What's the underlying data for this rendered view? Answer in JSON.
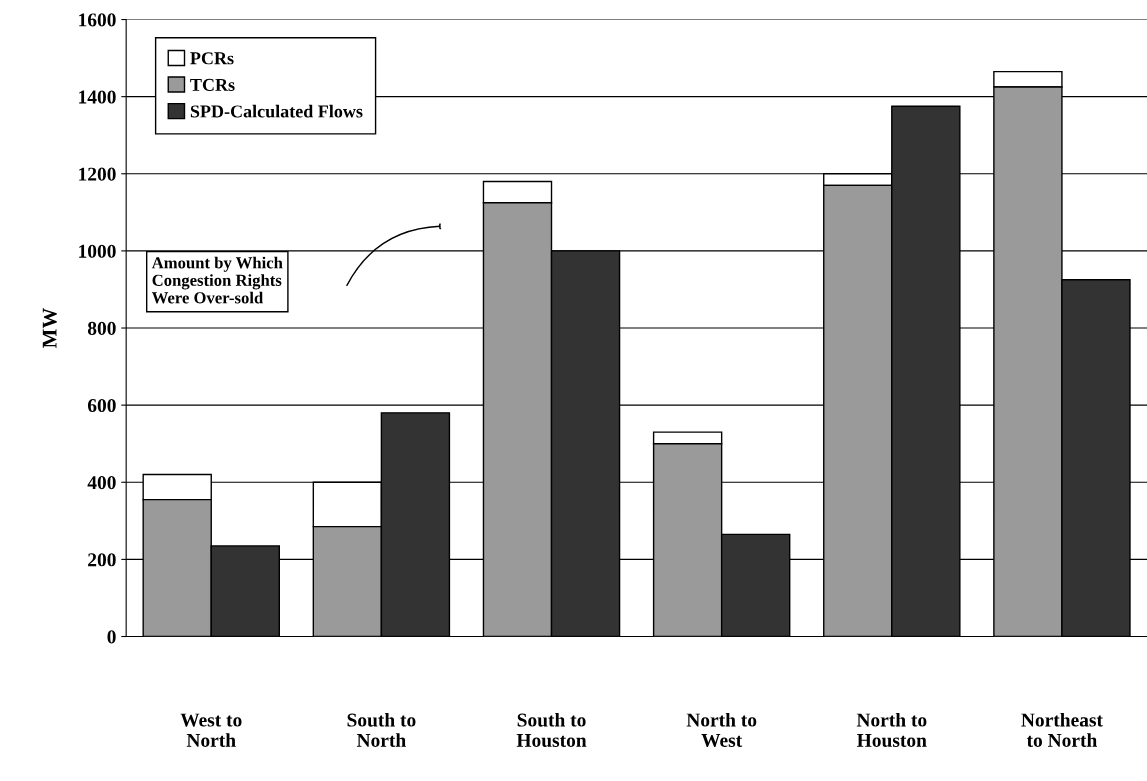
{
  "chart_data": {
    "type": "bar",
    "ylabel": "MW",
    "categories": [
      "West to\nNorth",
      "South to\nNorth",
      "South to\nHouston",
      "North to\nWest",
      "North to\nHouston",
      "Northeast\nto North"
    ],
    "series": [
      {
        "name": "PCRs",
        "color": "#ffffff",
        "base": [
          355,
          285,
          1125,
          500,
          1170,
          1425
        ],
        "values": [
          65,
          115,
          55,
          30,
          30,
          40
        ]
      },
      {
        "name": "TCRs",
        "color": "#9a9a9a",
        "values": [
          355,
          285,
          1125,
          500,
          1170,
          1425
        ]
      },
      {
        "name": "SPD-Calculated Flows",
        "color": "#333333",
        "values": [
          235,
          580,
          1000,
          265,
          1375,
          925
        ]
      }
    ],
    "ylim": [
      0,
      1600
    ],
    "yticks": [
      0,
      200,
      400,
      600,
      800,
      1000,
      1200,
      1400,
      1600
    ],
    "grid": "y",
    "legend": "top left",
    "annotations": [
      "Amount by Which\nCongestion Rights\nWere Over-sold"
    ]
  }
}
